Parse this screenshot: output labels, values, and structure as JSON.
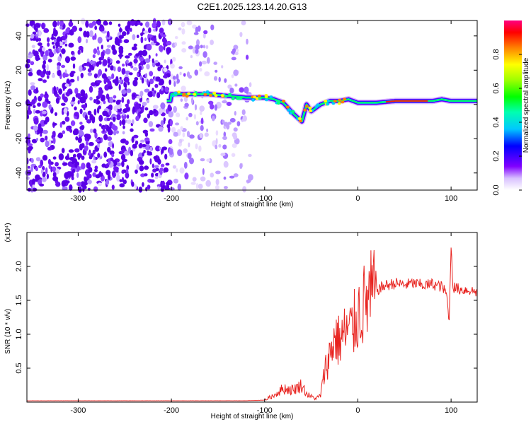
{
  "title": "C2E1.2025.123.14.20.G13",
  "chart_data": [
    {
      "type": "heatmap",
      "xlabel": "Height of straight line (km)",
      "ylabel": "Frequency (Hz)",
      "xlim": [
        -355,
        128
      ],
      "ylim": [
        -50,
        49
      ],
      "xticks": [
        -300,
        -200,
        -100,
        0,
        100
      ],
      "yticks": [
        -40,
        -20,
        0,
        20,
        40
      ],
      "colorbar": {
        "label": "Normalized spectral amplitude",
        "range": [
          0.0,
          1.0
        ],
        "ticks": [
          0.0,
          0.2,
          0.4,
          0.6,
          0.8
        ]
      },
      "ridge": {
        "x": [
          -200,
          -180,
          -160,
          -140,
          -120,
          -100,
          -90,
          -80,
          -70,
          -60,
          -55,
          -50,
          -45,
          -40,
          -30,
          -20,
          -10,
          0,
          20,
          40,
          60,
          80,
          90,
          100,
          110,
          128
        ],
        "y": [
          6,
          6,
          6,
          5,
          4,
          4,
          3,
          1,
          -5,
          -10,
          0,
          -4,
          -2,
          0,
          2,
          2,
          3,
          1,
          1,
          2,
          2,
          2,
          3,
          2,
          2,
          2
        ]
      }
    },
    {
      "type": "line",
      "xlabel": "Height of straight line (km)",
      "ylabel": "SNR (10 * v/v)",
      "y_scale_label": "(x10⁴)",
      "xlim": [
        -355,
        128
      ],
      "ylim": [
        0,
        2.5
      ],
      "xticks": [
        -300,
        -200,
        -100,
        0,
        100
      ],
      "yticks": [
        0.5,
        1.0,
        1.5,
        2.0
      ],
      "color": "#e8231f",
      "series": [
        {
          "x": [
            -355,
            -300,
            -250,
            -200,
            -150,
            -120,
            -100,
            -90,
            -80,
            -70,
            -60,
            -55,
            -50,
            -45,
            -40,
            -35,
            -30,
            -25,
            -20,
            -15,
            -10,
            -5,
            0,
            10,
            20,
            30,
            40,
            50,
            60,
            70,
            80,
            90,
            95,
            98,
            100,
            102,
            105,
            110,
            120,
            128
          ],
          "y": [
            0.02,
            0.02,
            0.02,
            0.02,
            0.02,
            0.02,
            0.03,
            0.1,
            0.2,
            0.18,
            0.25,
            0.12,
            0.08,
            0.05,
            0.1,
            0.5,
            0.7,
            0.95,
            0.9,
            1.0,
            1.05,
            1.1,
            1.3,
            1.5,
            1.65,
            1.72,
            1.75,
            1.73,
            1.75,
            1.72,
            1.74,
            1.7,
            1.6,
            1.2,
            2.35,
            1.7,
            1.68,
            1.66,
            1.65,
            1.62
          ]
        }
      ]
    }
  ],
  "colors": {
    "heat_low": "#8a3cff",
    "line": "#e8231f"
  }
}
